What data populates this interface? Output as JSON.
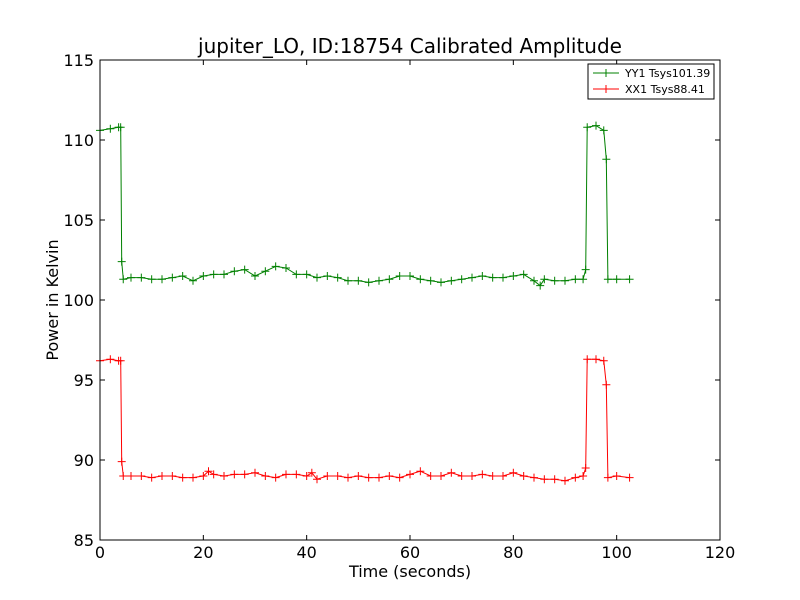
{
  "chart_data": {
    "type": "line",
    "title": "jupiter_LO, ID:18754 Calibrated Amplitude",
    "xlabel": "Time (seconds)",
    "ylabel": "Power in Kelvin",
    "xlim": [
      0,
      120
    ],
    "ylim": [
      85,
      115
    ],
    "xticks": [
      0,
      20,
      40,
      60,
      80,
      100,
      120
    ],
    "yticks": [
      85,
      90,
      95,
      100,
      105,
      110,
      115
    ],
    "grid": false,
    "legend_position": "top-right",
    "series": [
      {
        "name": "YY1 Tsys101.39",
        "color": "#008000",
        "marker": "plus",
        "x": [
          0,
          2,
          3.6,
          4.0,
          4.2,
          4.5,
          6,
          8,
          10,
          12,
          14,
          16,
          18,
          20,
          22,
          24,
          26,
          28,
          30,
          32,
          34,
          36,
          38,
          40,
          42,
          44,
          46,
          48,
          50,
          52,
          54,
          56,
          58,
          60,
          62,
          64,
          66,
          68,
          70,
          72,
          74,
          76,
          78,
          80,
          82,
          84,
          85.2,
          86,
          88,
          90,
          92,
          93.5,
          94.0,
          94.3,
          96,
          97.5,
          98.0,
          98.3,
          100,
          102.5
        ],
        "values": [
          110.6,
          110.7,
          110.8,
          110.8,
          102.4,
          101.3,
          101.4,
          101.4,
          101.3,
          101.3,
          101.4,
          101.5,
          101.2,
          101.5,
          101.6,
          101.6,
          101.8,
          101.9,
          101.5,
          101.8,
          102.1,
          102.0,
          101.6,
          101.6,
          101.4,
          101.5,
          101.4,
          101.2,
          101.2,
          101.1,
          101.2,
          101.3,
          101.5,
          101.5,
          101.3,
          101.2,
          101.1,
          101.2,
          101.3,
          101.4,
          101.5,
          101.4,
          101.4,
          101.5,
          101.6,
          101.2,
          100.9,
          101.3,
          101.2,
          101.2,
          101.3,
          101.3,
          101.9,
          110.8,
          110.9,
          110.6,
          108.8,
          101.3,
          101.3,
          101.3
        ]
      },
      {
        "name": "XX1 Tsys88.41",
        "color": "#ff0000",
        "marker": "plus",
        "x": [
          0,
          2,
          3.6,
          4.0,
          4.2,
          4.5,
          6,
          8,
          10,
          12,
          14,
          16,
          18,
          20,
          21,
          22,
          24,
          26,
          28,
          30,
          32,
          34,
          36,
          38,
          40,
          41,
          42,
          44,
          46,
          48,
          50,
          52,
          54,
          56,
          58,
          60,
          62,
          64,
          66,
          68,
          70,
          72,
          74,
          76,
          78,
          80,
          82,
          84,
          86,
          88,
          90,
          92,
          93.5,
          94.0,
          94.3,
          96,
          97.5,
          98.0,
          98.3,
          100,
          102.5
        ],
        "values": [
          96.2,
          96.3,
          96.2,
          96.2,
          89.9,
          89.0,
          89.0,
          89.0,
          88.9,
          89.0,
          89.0,
          88.9,
          88.9,
          89.0,
          89.3,
          89.1,
          89.0,
          89.1,
          89.1,
          89.2,
          89.0,
          88.9,
          89.1,
          89.1,
          89.0,
          89.2,
          88.8,
          89.0,
          89.0,
          88.9,
          89.0,
          88.9,
          88.9,
          89.0,
          88.9,
          89.1,
          89.3,
          89.0,
          89.0,
          89.2,
          89.0,
          89.0,
          89.1,
          89.0,
          89.0,
          89.2,
          89.0,
          88.9,
          88.8,
          88.8,
          88.7,
          88.9,
          89.0,
          89.5,
          96.3,
          96.3,
          96.2,
          94.7,
          88.9,
          89.0,
          88.9
        ]
      }
    ]
  }
}
